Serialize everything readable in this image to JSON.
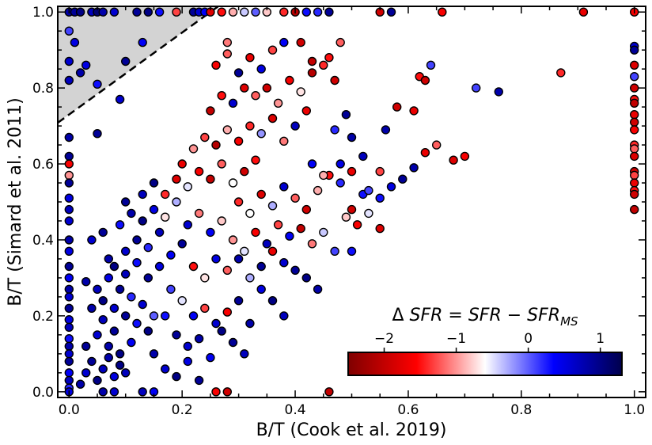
{
  "chart_data": {
    "type": "scatter",
    "xlabel": "B/T (Cook et al. 2019)",
    "ylabel": "B/T (Simard et al. 2011)",
    "xlim": [
      -0.02,
      1.02
    ],
    "ylim": [
      -0.015,
      1.015
    ],
    "x_ticks": [
      0.0,
      0.2,
      0.4,
      0.6,
      0.8,
      1.0
    ],
    "x_tick_labels": [
      "0.0",
      "0.2",
      "0.4",
      "0.6",
      "0.8",
      "1.0"
    ],
    "y_ticks": [
      0.0,
      0.2,
      0.4,
      0.6,
      0.8,
      1.0
    ],
    "y_tick_labels": [
      "0.0",
      "0.2",
      "0.4",
      "0.6",
      "0.8",
      "1.0"
    ],
    "shaded_region": {
      "description": "excluded region above dashed line y = 0.73 + 1.08 x",
      "line": {
        "intercept": 0.73,
        "slope": 1.08,
        "style": "dashed"
      },
      "fill": "#d3d3d3"
    },
    "colorbar": {
      "label": "Δ SFR = SFR − SFR_MS",
      "label_prefix": "Δ ",
      "label_main": "SFR = SFR − SFR",
      "label_sub": "MS",
      "range": [
        -2.5,
        1.3
      ],
      "ticks": [
        -2,
        -1,
        0,
        1
      ],
      "tick_labels": [
        "−2",
        "−1",
        "0",
        "1"
      ],
      "colormap": "seismic_r"
    },
    "points": [
      [
        0.0,
        1.0,
        0.8
      ],
      [
        0.01,
        1.0,
        0.9
      ],
      [
        0.02,
        1.0,
        1.0
      ],
      [
        0.04,
        1.0,
        0.7
      ],
      [
        0.05,
        1.0,
        1.1
      ],
      [
        0.06,
        1.0,
        0.8
      ],
      [
        0.08,
        1.0,
        0.6
      ],
      [
        0.12,
        1.0,
        0.9
      ],
      [
        0.14,
        1.0,
        1.0
      ],
      [
        0.16,
        1.0,
        0.3
      ],
      [
        0.19,
        1.0,
        -1.3
      ],
      [
        0.22,
        1.0,
        0.9
      ],
      [
        0.23,
        1.0,
        0.6
      ],
      [
        0.24,
        1.0,
        0.4
      ],
      [
        0.25,
        1.0,
        -1.8
      ],
      [
        0.27,
        1.0,
        -1.5
      ],
      [
        0.29,
        1.0,
        -0.9
      ],
      [
        0.31,
        1.0,
        -0.4
      ],
      [
        0.33,
        1.0,
        0.0
      ],
      [
        0.35,
        1.0,
        -0.8
      ],
      [
        0.38,
        1.0,
        -1.4
      ],
      [
        0.4,
        1.0,
        -2.1
      ],
      [
        0.42,
        1.0,
        0.3
      ],
      [
        0.44,
        1.0,
        0.2
      ],
      [
        0.46,
        1.0,
        0.9
      ],
      [
        0.55,
        1.0,
        -1.9
      ],
      [
        0.57,
        1.0,
        0.9
      ],
      [
        0.66,
        1.0,
        -1.6
      ],
      [
        0.91,
        1.0,
        -1.7
      ],
      [
        0.0,
        0.95,
        0.1
      ],
      [
        0.01,
        0.92,
        0.5
      ],
      [
        0.0,
        0.87,
        0.6
      ],
      [
        0.03,
        0.86,
        0.5
      ],
      [
        0.0,
        0.82,
        0.7
      ],
      [
        0.05,
        0.81,
        0.3
      ],
      [
        0.1,
        0.87,
        0.9
      ],
      [
        0.13,
        0.92,
        0.4
      ],
      [
        0.02,
        0.84,
        0.8
      ],
      [
        0.09,
        0.77,
        0.6
      ],
      [
        0.05,
        0.68,
        0.9
      ],
      [
        0.0,
        0.67,
        0.8
      ],
      [
        0.0,
        0.62,
        0.9
      ],
      [
        0.0,
        0.6,
        -1.6
      ],
      [
        0.0,
        0.57,
        -1.0
      ],
      [
        0.0,
        0.55,
        0.9
      ],
      [
        0.0,
        0.51,
        0.5
      ],
      [
        0.0,
        0.48,
        0.7
      ],
      [
        0.0,
        0.45,
        0.6
      ],
      [
        0.0,
        0.4,
        0.8
      ],
      [
        0.0,
        0.37,
        0.5
      ],
      [
        0.0,
        0.33,
        0.9
      ],
      [
        0.0,
        0.3,
        0.4
      ],
      [
        0.0,
        0.27,
        0.8
      ],
      [
        0.0,
        0.25,
        0.6
      ],
      [
        0.0,
        0.22,
        0.9
      ],
      [
        0.0,
        0.19,
        0.5
      ],
      [
        0.0,
        0.17,
        0.7
      ],
      [
        0.0,
        0.14,
        0.3
      ],
      [
        0.0,
        0.12,
        0.8
      ],
      [
        0.0,
        0.1,
        0.6
      ],
      [
        0.0,
        0.08,
        0.9
      ],
      [
        0.0,
        0.05,
        0.4
      ],
      [
        0.0,
        0.03,
        0.7
      ],
      [
        0.0,
        0.01,
        0.2
      ],
      [
        0.0,
        0.0,
        0.5
      ],
      [
        0.02,
        0.02,
        0.8
      ],
      [
        0.03,
        0.05,
        0.6
      ],
      [
        0.04,
        0.08,
        0.9
      ],
      [
        0.05,
        0.03,
        1.0
      ],
      [
        0.06,
        0.06,
        0.7
      ],
      [
        0.07,
        0.09,
        0.8
      ],
      [
        0.08,
        0.04,
        0.5
      ],
      [
        0.09,
        0.07,
        1.0
      ],
      [
        0.1,
        0.05,
        0.7
      ],
      [
        0.03,
        0.12,
        0.9
      ],
      [
        0.05,
        0.15,
        0.6
      ],
      [
        0.07,
        0.12,
        0.8
      ],
      [
        0.09,
        0.1,
        1.0
      ],
      [
        0.11,
        0.13,
        0.4
      ],
      [
        0.08,
        0.16,
        0.9
      ],
      [
        0.06,
        0.19,
        0.7
      ],
      [
        0.04,
        0.22,
        0.8
      ],
      [
        0.06,
        0.24,
        1.0
      ],
      [
        0.08,
        0.22,
        0.6
      ],
      [
        0.1,
        0.2,
        0.9
      ],
      [
        0.12,
        0.18,
        0.3
      ],
      [
        0.14,
        0.16,
        1.0
      ],
      [
        0.05,
        0.27,
        0.7
      ],
      [
        0.07,
        0.3,
        0.5
      ],
      [
        0.09,
        0.27,
        0.9
      ],
      [
        0.11,
        0.25,
        0.2
      ],
      [
        0.13,
        0.23,
        0.6
      ],
      [
        0.15,
        0.2,
        0.0
      ],
      [
        0.03,
        0.29,
        0.8
      ],
      [
        0.08,
        0.33,
        1.0
      ],
      [
        0.1,
        0.31,
        0.7
      ],
      [
        0.12,
        0.34,
        0.3
      ],
      [
        0.14,
        0.3,
        0.9
      ],
      [
        0.16,
        0.33,
        0.5
      ],
      [
        0.18,
        0.27,
        0.1
      ],
      [
        0.07,
        0.35,
        0.8
      ],
      [
        0.1,
        0.37,
        0.6
      ],
      [
        0.12,
        0.4,
        0.9
      ],
      [
        0.14,
        0.38,
        0.2
      ],
      [
        0.16,
        0.42,
        0.7
      ],
      [
        0.18,
        0.36,
        0.4
      ],
      [
        0.2,
        0.39,
        0.9
      ],
      [
        0.04,
        0.4,
        0.6
      ],
      [
        0.06,
        0.42,
        0.9
      ],
      [
        0.09,
        0.44,
        0.3
      ],
      [
        0.11,
        0.47,
        0.8
      ],
      [
        0.13,
        0.45,
        1.0
      ],
      [
        0.15,
        0.48,
        0.5
      ],
      [
        0.17,
        0.46,
        -0.7
      ],
      [
        0.19,
        0.5,
        -0.3
      ],
      [
        0.21,
        0.44,
        0.6
      ],
      [
        0.23,
        0.47,
        -1.1
      ],
      [
        0.25,
        0.42,
        0.4
      ],
      [
        0.27,
        0.45,
        -0.8
      ],
      [
        0.1,
        0.5,
        0.9
      ],
      [
        0.13,
        0.52,
        0.7
      ],
      [
        0.15,
        0.55,
        1.0
      ],
      [
        0.17,
        0.52,
        -1.4
      ],
      [
        0.19,
        0.56,
        -1.8
      ],
      [
        0.21,
        0.54,
        -0.5
      ],
      [
        0.23,
        0.58,
        -1.6
      ],
      [
        0.25,
        0.56,
        -2.0
      ],
      [
        0.27,
        0.6,
        -1.2
      ],
      [
        0.29,
        0.55,
        -0.6
      ],
      [
        0.31,
        0.58,
        -1.9
      ],
      [
        0.33,
        0.61,
        -1.5
      ],
      [
        0.2,
        0.6,
        -1.7
      ],
      [
        0.22,
        0.64,
        -1.0
      ],
      [
        0.24,
        0.67,
        -1.3
      ],
      [
        0.26,
        0.65,
        -2.1
      ],
      [
        0.28,
        0.69,
        -0.9
      ],
      [
        0.3,
        0.66,
        -1.6
      ],
      [
        0.32,
        0.7,
        -1.4
      ],
      [
        0.34,
        0.68,
        -0.2
      ],
      [
        0.36,
        0.72,
        -1.8
      ],
      [
        0.38,
        0.66,
        -1.1
      ],
      [
        0.4,
        0.7,
        0.7
      ],
      [
        0.42,
        0.74,
        -1.7
      ],
      [
        0.25,
        0.74,
        -2.0
      ],
      [
        0.27,
        0.78,
        -1.5
      ],
      [
        0.29,
        0.76,
        0.6
      ],
      [
        0.31,
        0.8,
        -1.8
      ],
      [
        0.33,
        0.78,
        -1.2
      ],
      [
        0.35,
        0.8,
        -1.9
      ],
      [
        0.37,
        0.76,
        -1.0
      ],
      [
        0.39,
        0.82,
        -1.6
      ],
      [
        0.41,
        0.79,
        -0.7
      ],
      [
        0.43,
        0.84,
        -2.1
      ],
      [
        0.45,
        0.86,
        -1.4
      ],
      [
        0.47,
        0.82,
        -1.9
      ],
      [
        0.26,
        0.86,
        -1.6
      ],
      [
        0.28,
        0.89,
        -1.2
      ],
      [
        0.3,
        0.84,
        0.9
      ],
      [
        0.32,
        0.88,
        -1.7
      ],
      [
        0.34,
        0.85,
        0.5
      ],
      [
        0.36,
        0.9,
        -1.3
      ],
      [
        0.38,
        0.92,
        0.4
      ],
      [
        0.41,
        0.92,
        -1.9
      ],
      [
        0.43,
        0.87,
        -2.0
      ],
      [
        0.46,
        0.88,
        -1.5
      ],
      [
        0.48,
        0.92,
        -1.2
      ],
      [
        0.28,
        0.92,
        -1.1
      ],
      [
        0.3,
        0.5,
        -1.4
      ],
      [
        0.32,
        0.47,
        -0.6
      ],
      [
        0.34,
        0.52,
        -1.8
      ],
      [
        0.36,
        0.49,
        -0.3
      ],
      [
        0.38,
        0.54,
        0.6
      ],
      [
        0.4,
        0.51,
        -1.2
      ],
      [
        0.42,
        0.48,
        -1.9
      ],
      [
        0.44,
        0.53,
        -0.9
      ],
      [
        0.46,
        0.57,
        -1.5
      ],
      [
        0.48,
        0.55,
        0.2
      ],
      [
        0.5,
        0.58,
        -1.7
      ],
      [
        0.52,
        0.52,
        0.3
      ],
      [
        0.29,
        0.4,
        -1.0
      ],
      [
        0.31,
        0.37,
        -0.5
      ],
      [
        0.33,
        0.42,
        -1.6
      ],
      [
        0.35,
        0.39,
        0.7
      ],
      [
        0.37,
        0.44,
        -1.3
      ],
      [
        0.39,
        0.41,
        0.4
      ],
      [
        0.41,
        0.43,
        -2.0
      ],
      [
        0.43,
        0.39,
        -1.1
      ],
      [
        0.45,
        0.42,
        -0.4
      ],
      [
        0.47,
        0.37,
        0.1
      ],
      [
        0.49,
        0.46,
        -0.8
      ],
      [
        0.51,
        0.44,
        -1.6
      ],
      [
        0.22,
        0.33,
        -1.5
      ],
      [
        0.24,
        0.3,
        -0.7
      ],
      [
        0.26,
        0.35,
        0.5
      ],
      [
        0.28,
        0.32,
        -1.2
      ],
      [
        0.3,
        0.35,
        0.8
      ],
      [
        0.32,
        0.3,
        -0.3
      ],
      [
        0.34,
        0.33,
        0.9
      ],
      [
        0.36,
        0.37,
        -1.7
      ],
      [
        0.38,
        0.34,
        0.6
      ],
      [
        0.4,
        0.32,
        0.9
      ],
      [
        0.42,
        0.3,
        1.0
      ],
      [
        0.44,
        0.27,
        0.8
      ],
      [
        0.2,
        0.24,
        -0.5
      ],
      [
        0.22,
        0.2,
        0.4
      ],
      [
        0.24,
        0.22,
        -1.3
      ],
      [
        0.26,
        0.18,
        0.6
      ],
      [
        0.28,
        0.21,
        -1.6
      ],
      [
        0.3,
        0.24,
        0.9
      ],
      [
        0.32,
        0.18,
        0.8
      ],
      [
        0.34,
        0.27,
        0.5
      ],
      [
        0.36,
        0.24,
        1.0
      ],
      [
        0.38,
        0.2,
        0.7
      ],
      [
        0.17,
        0.2,
        0.3
      ],
      [
        0.19,
        0.15,
        0.9
      ],
      [
        0.21,
        0.12,
        0.6
      ],
      [
        0.23,
        0.14,
        0.8
      ],
      [
        0.25,
        0.09,
        0.4
      ],
      [
        0.27,
        0.16,
        1.0
      ],
      [
        0.29,
        0.13,
        0.9
      ],
      [
        0.31,
        0.1,
        0.7
      ],
      [
        0.15,
        0.1,
        0.8
      ],
      [
        0.17,
        0.06,
        0.6
      ],
      [
        0.19,
        0.04,
        1.0
      ],
      [
        0.21,
        0.08,
        0.5
      ],
      [
        0.23,
        0.03,
        0.9
      ],
      [
        0.13,
        0.0,
        0.7
      ],
      [
        0.15,
        0.0,
        0.4
      ],
      [
        0.26,
        0.0,
        -1.6
      ],
      [
        0.28,
        0.0,
        -1.9
      ],
      [
        0.46,
        0.0,
        -2.0
      ],
      [
        0.06,
        0.0,
        0.8
      ],
      [
        0.08,
        0.0,
        0.6
      ],
      [
        0.53,
        0.53,
        0.1
      ],
      [
        0.55,
        0.51,
        0.3
      ],
      [
        0.57,
        0.54,
        0.5
      ],
      [
        0.59,
        0.56,
        0.9
      ],
      [
        0.61,
        0.59,
        0.8
      ],
      [
        0.63,
        0.63,
        -1.7
      ],
      [
        0.65,
        0.65,
        -1.2
      ],
      [
        0.68,
        0.61,
        -1.8
      ],
      [
        0.7,
        0.62,
        -1.6
      ],
      [
        0.55,
        0.58,
        -1.3
      ],
      [
        0.52,
        0.62,
        0.7
      ],
      [
        0.48,
        0.6,
        0.5
      ],
      [
        0.45,
        0.57,
        -0.9
      ],
      [
        0.43,
        0.6,
        0.4
      ],
      [
        0.5,
        0.67,
        0.8
      ],
      [
        0.47,
        0.69,
        0.2
      ],
      [
        0.49,
        0.73,
        0.9
      ],
      [
        0.56,
        0.69,
        0.8
      ],
      [
        0.58,
        0.75,
        -1.9
      ],
      [
        0.61,
        0.74,
        -1.7
      ],
      [
        0.62,
        0.83,
        -1.5
      ],
      [
        0.63,
        0.82,
        -1.9
      ],
      [
        0.64,
        0.86,
        0.1
      ],
      [
        0.72,
        0.8,
        0.1
      ],
      [
        0.76,
        0.79,
        0.8
      ],
      [
        0.87,
        0.84,
        -1.4
      ],
      [
        0.5,
        0.48,
        -1.9
      ],
      [
        0.53,
        0.47,
        -0.5
      ],
      [
        0.55,
        0.43,
        -1.8
      ],
      [
        0.5,
        0.37,
        0.3
      ],
      [
        1.0,
        1.0,
        -1.6
      ],
      [
        1.0,
        0.91,
        0.6
      ],
      [
        1.0,
        0.9,
        0.9
      ],
      [
        1.0,
        0.86,
        -1.8
      ],
      [
        1.0,
        0.83,
        0.1
      ],
      [
        1.0,
        0.8,
        -1.9
      ],
      [
        1.0,
        0.77,
        -1.5
      ],
      [
        1.0,
        0.76,
        -2.0
      ],
      [
        1.0,
        0.73,
        -1.7
      ],
      [
        1.0,
        0.71,
        -1.9
      ],
      [
        1.0,
        0.69,
        -1.6
      ],
      [
        1.0,
        0.65,
        -1.4
      ],
      [
        1.0,
        0.64,
        -1.2
      ],
      [
        1.0,
        0.62,
        -1.8
      ],
      [
        1.0,
        0.58,
        -1.9
      ],
      [
        1.0,
        0.57,
        -1.3
      ],
      [
        1.0,
        0.55,
        -1.7
      ],
      [
        1.0,
        0.53,
        -1.5
      ],
      [
        1.0,
        0.52,
        -1.9
      ],
      [
        1.0,
        0.48,
        -2.0
      ]
    ]
  }
}
